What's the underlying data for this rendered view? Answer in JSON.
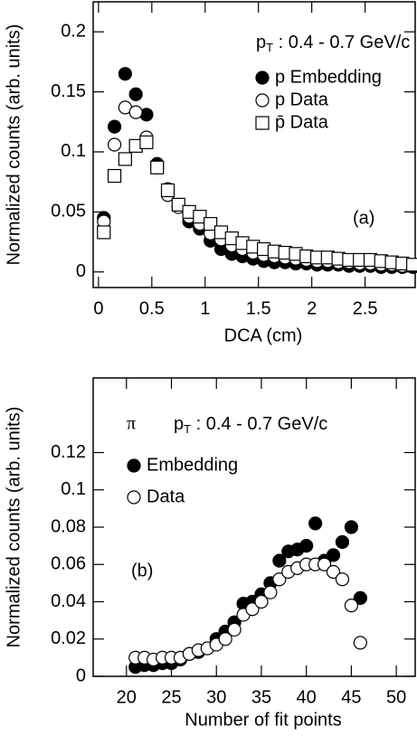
{
  "chart_data": [
    {
      "type": "scatter",
      "y_label": "Normalized counts (arb. units)",
      "x_label": "DCA (cm)",
      "pt_label": {
        "main": "p",
        "sub": "T",
        "rest": " : 0.4 - 0.7 GeV/c"
      },
      "panel_label": "(a)",
      "x": [
        0.05,
        0.15,
        0.25,
        0.35,
        0.45,
        0.55,
        0.65,
        0.75,
        0.85,
        0.95,
        1.05,
        1.15,
        1.25,
        1.35,
        1.45,
        1.55,
        1.65,
        1.75,
        1.85,
        1.95,
        2.05,
        2.15,
        2.25,
        2.35,
        2.45,
        2.55,
        2.65,
        2.75,
        2.85,
        2.95
      ],
      "series": [
        {
          "name": "p Embedding",
          "color": "#000000",
          "marker": "filled-circle",
          "values": [
            0.045,
            0.121,
            0.165,
            0.148,
            0.131,
            0.09,
            0.069,
            0.055,
            0.042,
            0.036,
            0.026,
            0.019,
            0.015,
            0.013,
            0.011,
            0.009,
            0.008,
            0.008,
            0.007,
            0.007,
            0.006,
            0.006,
            0.006,
            0.005,
            0.005,
            0.005,
            0.004,
            0.004,
            0.004,
            0.004
          ]
        },
        {
          "name": "p Data",
          "color": "#000000",
          "marker": "open-circle",
          "values": [
            0.042,
            0.106,
            0.137,
            0.133,
            0.112,
            0.087,
            0.064,
            0.054,
            0.046,
            0.04,
            0.032,
            0.027,
            0.022,
            0.019,
            0.016,
            0.014,
            0.013,
            0.012,
            0.011,
            0.01,
            0.009,
            0.009,
            0.008,
            0.008,
            0.007,
            0.007,
            0.006,
            0.006,
            0.005,
            0.005
          ]
        },
        {
          "name": "p̄ Data",
          "color": "#000000",
          "marker": "open-square",
          "values": [
            0.033,
            0.08,
            0.094,
            0.105,
            0.108,
            0.087,
            0.068,
            0.056,
            0.05,
            0.046,
            0.04,
            0.033,
            0.028,
            0.024,
            0.021,
            0.019,
            0.017,
            0.016,
            0.015,
            0.013,
            0.012,
            0.012,
            0.011,
            0.01,
            0.01,
            0.01,
            0.009,
            0.008,
            0.007,
            0.006
          ]
        }
      ],
      "xlim": [
        -0.05,
        2.97
      ],
      "ylim": [
        -0.013,
        0.225
      ],
      "xticks": [
        0,
        0.5,
        1,
        1.5,
        2,
        2.5
      ],
      "yticks": [
        0,
        0.05,
        0.1,
        0.15,
        0.2
      ]
    },
    {
      "type": "scatter",
      "y_label": "Normalized counts (arb. units)",
      "x_label": "Number of fit points",
      "particle": "π",
      "pt_label": {
        "main": "p",
        "sub": "T",
        "rest": " : 0.4 - 0.7 GeV/c"
      },
      "panel_label": "(b)",
      "x": [
        21,
        22,
        23,
        24,
        25,
        26,
        27,
        28,
        29,
        30,
        31,
        32,
        33,
        34,
        35,
        36,
        37,
        38,
        39,
        40,
        41,
        42,
        43,
        44,
        45,
        46
      ],
      "series": [
        {
          "name": "Embedding",
          "color": "#000000",
          "marker": "filled-circle",
          "values": [
            0.005,
            0.006,
            0.006,
            0.007,
            0.007,
            0.009,
            0.012,
            0.013,
            0.015,
            0.02,
            0.024,
            0.029,
            0.039,
            0.04,
            0.044,
            0.05,
            0.062,
            0.067,
            0.068,
            0.07,
            0.082,
            0.062,
            0.065,
            0.072,
            0.08,
            0.042
          ]
        },
        {
          "name": "Data",
          "color": "#000000",
          "marker": "open-circle",
          "values": [
            0.01,
            0.01,
            0.009,
            0.01,
            0.01,
            0.01,
            0.012,
            0.014,
            0.015,
            0.017,
            0.02,
            0.025,
            0.033,
            0.036,
            0.04,
            0.045,
            0.052,
            0.056,
            0.058,
            0.06,
            0.06,
            0.06,
            0.056,
            0.052,
            0.038,
            0.018
          ]
        }
      ],
      "xlim": [
        16.3,
        52.1
      ],
      "ylim": [
        0,
        0.16
      ],
      "xticks": [
        20,
        25,
        30,
        35,
        40,
        45,
        50
      ],
      "yticks": [
        0,
        0.02,
        0.04,
        0.06,
        0.08,
        0.1,
        0.12
      ]
    }
  ]
}
